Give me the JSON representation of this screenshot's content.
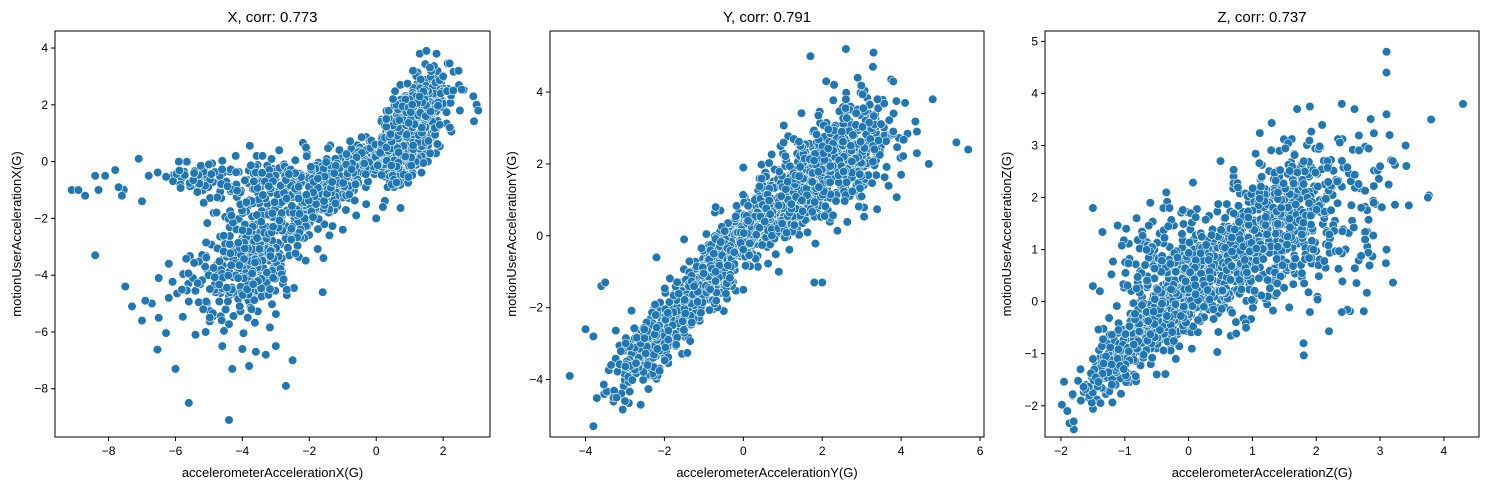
{
  "figure": {
    "background": "#ffffff",
    "marker_color": "#1f77b4",
    "marker_edge": "#ffffff"
  },
  "chart_data": [
    {
      "type": "scatter",
      "title": "X, corr: 0.773",
      "xlabel": "accelerometerAccelerationX(G)",
      "ylabel": "motionUserAccelerationX(G)",
      "xlim": [
        -9.6,
        3.4
      ],
      "ylim": [
        -9.7,
        4.6
      ],
      "xticks": [
        -8,
        -6,
        -4,
        -2,
        0,
        2
      ],
      "yticks": [
        -8,
        -6,
        -4,
        -2,
        0,
        2,
        4
      ],
      "tick_labels_x": [
        "−8",
        "−6",
        "−4",
        "−2",
        "0",
        "2"
      ],
      "tick_labels_y": [
        "−8",
        "−6",
        "−4",
        "−2",
        "0",
        "2",
        "4"
      ],
      "points": [
        [
          -9.1,
          -1.0
        ],
        [
          -8.9,
          -1.0
        ],
        [
          -8.7,
          -1.2
        ],
        [
          -8.4,
          -0.5
        ],
        [
          -8.3,
          -1.0
        ],
        [
          -8.1,
          -0.5
        ],
        [
          -8.4,
          -3.3
        ],
        [
          -7.8,
          -0.3
        ],
        [
          -7.7,
          -0.9
        ],
        [
          -7.6,
          -1.2
        ],
        [
          -7.5,
          -4.4
        ],
        [
          -7.3,
          -5.1
        ],
        [
          -7.0,
          -5.6
        ],
        [
          -6.9,
          -4.9
        ],
        [
          -6.5,
          -5.5
        ],
        [
          -6.2,
          -4.8
        ],
        [
          -6.0,
          -7.3
        ],
        [
          -5.6,
          -8.5
        ],
        [
          -5.4,
          -6.1
        ],
        [
          -5.1,
          -6.0
        ],
        [
          -4.6,
          -6.5
        ],
        [
          -4.3,
          -7.3
        ],
        [
          -4.0,
          -6.6
        ],
        [
          -3.8,
          -7.2
        ],
        [
          -3.6,
          -6.7
        ],
        [
          -3.3,
          -6.8
        ],
        [
          -3.0,
          -6.5
        ],
        [
          -2.7,
          -7.9
        ],
        [
          -4.4,
          -9.1
        ],
        [
          -2.5,
          -7.0
        ],
        [
          -1.6,
          -4.6
        ],
        [
          -7.1,
          0.1
        ],
        [
          -6.8,
          -0.5
        ],
        [
          -5.9,
          0.0
        ],
        [
          -5.0,
          -0.1
        ],
        [
          -4.2,
          0.2
        ],
        [
          -3.4,
          0.2
        ],
        [
          -2.9,
          0.4
        ],
        [
          -2.1,
          0.5
        ],
        [
          -6.5,
          -4.1
        ],
        [
          -6.2,
          -3.6
        ],
        [
          -7.0,
          -1.4
        ],
        [
          0.2,
          -1.6
        ],
        [
          -0.3,
          -1.5
        ],
        [
          0.0,
          -2.0
        ],
        [
          -0.6,
          -1.9
        ],
        [
          -1.0,
          -2.4
        ],
        [
          -1.4,
          -2.6
        ],
        [
          1.3,
          3.8
        ],
        [
          1.5,
          3.9
        ],
        [
          1.8,
          3.8
        ],
        [
          2.3,
          2.5
        ],
        [
          2.5,
          1.8
        ],
        [
          3.0,
          2.0
        ],
        [
          3.05,
          1.8
        ],
        [
          2.9,
          2.3
        ],
        [
          2.0,
          3.0
        ],
        [
          1.1,
          3.2
        ],
        [
          0.5,
          2.2
        ],
        [
          0.3,
          1.5
        ],
        [
          2.2,
          1.2
        ],
        [
          1.9,
          1.3
        ]
      ],
      "clusters": [
        {
          "cx": -0.3,
          "cy": 0.1,
          "sx": 1.0,
          "sy": 0.45,
          "rho": 0.75,
          "n": 420
        },
        {
          "cx": 0.8,
          "cy": 0.6,
          "sx": 0.35,
          "sy": 0.7,
          "rho": 0.3,
          "n": 330
        },
        {
          "cx": 1.3,
          "cy": 1.9,
          "sx": 0.45,
          "sy": 0.6,
          "rho": 0.55,
          "n": 340
        },
        {
          "cx": -1.5,
          "cy": -1.2,
          "sx": 0.6,
          "sy": 0.6,
          "rho": 0.7,
          "n": 200
        },
        {
          "cx": -3.6,
          "cy": -3.3,
          "sx": 0.75,
          "sy": 0.9,
          "rho": 0.25,
          "n": 320
        },
        {
          "cx": -3.0,
          "cy": -0.8,
          "sx": 1.3,
          "sy": 0.6,
          "rho": 0.3,
          "n": 160
        },
        {
          "cx": -5.3,
          "cy": -0.6,
          "sx": 0.7,
          "sy": 0.3,
          "rho": 0.1,
          "n": 50
        },
        {
          "cx": -4.5,
          "cy": -4.6,
          "sx": 0.9,
          "sy": 0.8,
          "rho": 0.1,
          "n": 70
        }
      ]
    },
    {
      "type": "scatter",
      "title": "Y, corr: 0.791",
      "xlabel": "accelerometerAccelerationY(G)",
      "ylabel": "motionUserAccelerationY(G)",
      "xlim": [
        -4.9,
        6.1
      ],
      "ylim": [
        -5.6,
        5.7
      ],
      "xticks": [
        -4,
        -2,
        0,
        2,
        4,
        6
      ],
      "yticks": [
        -4,
        -2,
        0,
        2,
        4
      ],
      "tick_labels_x": [
        "−4",
        "−2",
        "0",
        "2",
        "4",
        "6"
      ],
      "tick_labels_y": [
        "−4",
        "−2",
        "0",
        "2",
        "4"
      ],
      "points": [
        [
          -4.4,
          -3.9
        ],
        [
          -3.8,
          -5.3
        ],
        [
          -4.0,
          -2.6
        ],
        [
          -3.8,
          -2.8
        ],
        [
          -3.6,
          -1.4
        ],
        [
          -3.5,
          -1.3
        ],
        [
          -3.0,
          -4.6
        ],
        [
          -2.6,
          -4.7
        ],
        [
          -2.2,
          -0.6
        ],
        [
          -1.5,
          -0.1
        ],
        [
          -0.7,
          0.8
        ],
        [
          0.0,
          1.9
        ],
        [
          -0.7,
          -1.0
        ],
        [
          1.7,
          5.0
        ],
        [
          2.1,
          4.3
        ],
        [
          2.3,
          4.2
        ],
        [
          2.6,
          3.8
        ],
        [
          2.6,
          5.2
        ],
        [
          2.9,
          4.4
        ],
        [
          3.3,
          5.1
        ],
        [
          3.4,
          3.8
        ],
        [
          4.1,
          3.7
        ],
        [
          4.4,
          2.9
        ],
        [
          4.8,
          3.8
        ],
        [
          4.4,
          2.3
        ],
        [
          4.7,
          2.0
        ],
        [
          5.4,
          2.6
        ],
        [
          5.7,
          2.4
        ],
        [
          4.0,
          1.7
        ],
        [
          3.8,
          2.9
        ],
        [
          2.0,
          -1.3
        ],
        [
          1.8,
          -1.3
        ],
        [
          0.0,
          -1.5
        ],
        [
          0.9,
          -1.0
        ]
      ],
      "clusters": [
        {
          "cx": 0.0,
          "cy": 0.0,
          "sx": 0.45,
          "sy": 0.45,
          "rho": 0.85,
          "n": 520
        },
        {
          "cx": 1.0,
          "cy": 1.0,
          "sx": 0.9,
          "sy": 1.0,
          "rho": 0.8,
          "n": 500
        },
        {
          "cx": 2.4,
          "cy": 2.1,
          "sx": 0.7,
          "sy": 0.8,
          "rho": 0.35,
          "n": 380
        },
        {
          "cx": -1.2,
          "cy": -1.6,
          "sx": 0.6,
          "sy": 0.8,
          "rho": 0.85,
          "n": 330
        },
        {
          "cx": -2.5,
          "cy": -3.2,
          "sx": 0.45,
          "sy": 0.55,
          "rho": 0.5,
          "n": 180
        }
      ]
    },
    {
      "type": "scatter",
      "title": "Z, corr: 0.737",
      "xlabel": "accelerometerAccelerationZ(G)",
      "ylabel": "motionUserAccelerationZ(G)",
      "xlim": [
        -2.25,
        4.55
      ],
      "ylim": [
        -2.6,
        5.2
      ],
      "xticks": [
        -2,
        -1,
        0,
        1,
        2,
        3,
        4
      ],
      "yticks": [
        -2,
        -1,
        0,
        1,
        2,
        3,
        4,
        5
      ],
      "tick_labels_x": [
        "−2",
        "−1",
        "0",
        "1",
        "2",
        "3",
        "4"
      ],
      "tick_labels_y": [
        "−2",
        "−1",
        "0",
        "1",
        "2",
        "3",
        "4",
        "5"
      ],
      "points": [
        [
          -1.9,
          -2.1
        ],
        [
          -1.8,
          -2.3
        ],
        [
          -1.5,
          1.8
        ],
        [
          3.1,
          4.8
        ],
        [
          3.1,
          4.4
        ],
        [
          3.1,
          3.6
        ],
        [
          3.15,
          3.2
        ],
        [
          3.2,
          2.7
        ],
        [
          3.4,
          3.0
        ],
        [
          3.0,
          2.6
        ],
        [
          3.8,
          3.5
        ],
        [
          4.3,
          3.8
        ],
        [
          3.75,
          2.0
        ],
        [
          3.45,
          1.85
        ],
        [
          3.1,
          1.0
        ],
        [
          2.9,
          1.9
        ],
        [
          2.6,
          3.7
        ],
        [
          2.4,
          3.8
        ],
        [
          1.9,
          3.75
        ],
        [
          1.7,
          3.7
        ],
        [
          1.4,
          2.1
        ],
        [
          -1.5,
          0.3
        ],
        [
          -0.6,
          1.9
        ],
        [
          -0.3,
          1.8
        ],
        [
          1.8,
          -0.8
        ],
        [
          0.9,
          -0.5
        ],
        [
          -0.5,
          -1.4
        ],
        [
          -0.2,
          -1.1
        ],
        [
          2.4,
          -0.2
        ],
        [
          1.9,
          -0.2
        ],
        [
          0.5,
          2.7
        ]
      ],
      "clusters": [
        {
          "cx": -0.3,
          "cy": -0.2,
          "sx": 0.4,
          "sy": 0.45,
          "rho": 0.85,
          "n": 520
        },
        {
          "cx": 0.1,
          "cy": 0.4,
          "sx": 0.5,
          "sy": 0.6,
          "rho": 0.7,
          "n": 330
        },
        {
          "cx": 1.2,
          "cy": 1.3,
          "sx": 0.6,
          "sy": 0.8,
          "rho": 0.5,
          "n": 460
        },
        {
          "cx": 2.0,
          "cy": 1.6,
          "sx": 0.6,
          "sy": 0.9,
          "rho": 0.3,
          "n": 170
        },
        {
          "cx": -1.1,
          "cy": -1.1,
          "sx": 0.35,
          "sy": 0.5,
          "rho": 0.75,
          "n": 210
        },
        {
          "cx": -0.6,
          "cy": 0.9,
          "sx": 0.4,
          "sy": 0.5,
          "rho": 0.3,
          "n": 90
        }
      ]
    }
  ]
}
